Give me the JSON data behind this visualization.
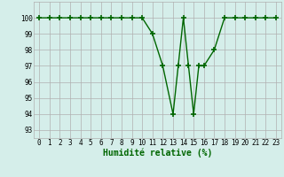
{
  "x": [
    0,
    1,
    2,
    3,
    4,
    5,
    6,
    7,
    8,
    9,
    10,
    11,
    12,
    13,
    13.5,
    14,
    14.5,
    15,
    15.5,
    16,
    17,
    18,
    19,
    20,
    21,
    22,
    23
  ],
  "y": [
    100,
    100,
    100,
    100,
    100,
    100,
    100,
    100,
    100,
    100,
    100,
    99,
    97,
    94,
    97,
    100,
    97,
    94,
    97,
    97,
    98,
    100,
    100,
    100,
    100,
    100,
    100
  ],
  "line_color": "#006600",
  "marker_color": "#006600",
  "bg_color": "#d5eeea",
  "grid_color": "#b0b0b0",
  "xlabel": "Humidité relative (%)",
  "xlim": [
    -0.5,
    23.5
  ],
  "ylim": [
    92.5,
    101.0
  ],
  "yticks": [
    93,
    94,
    95,
    96,
    97,
    98,
    99,
    100
  ],
  "xticks": [
    0,
    1,
    2,
    3,
    4,
    5,
    6,
    7,
    8,
    9,
    10,
    11,
    12,
    13,
    14,
    15,
    16,
    17,
    18,
    19,
    20,
    21,
    22,
    23
  ],
  "tick_fontsize": 5.5,
  "xlabel_fontsize": 7,
  "marker_size": 4,
  "line_width": 1.0
}
